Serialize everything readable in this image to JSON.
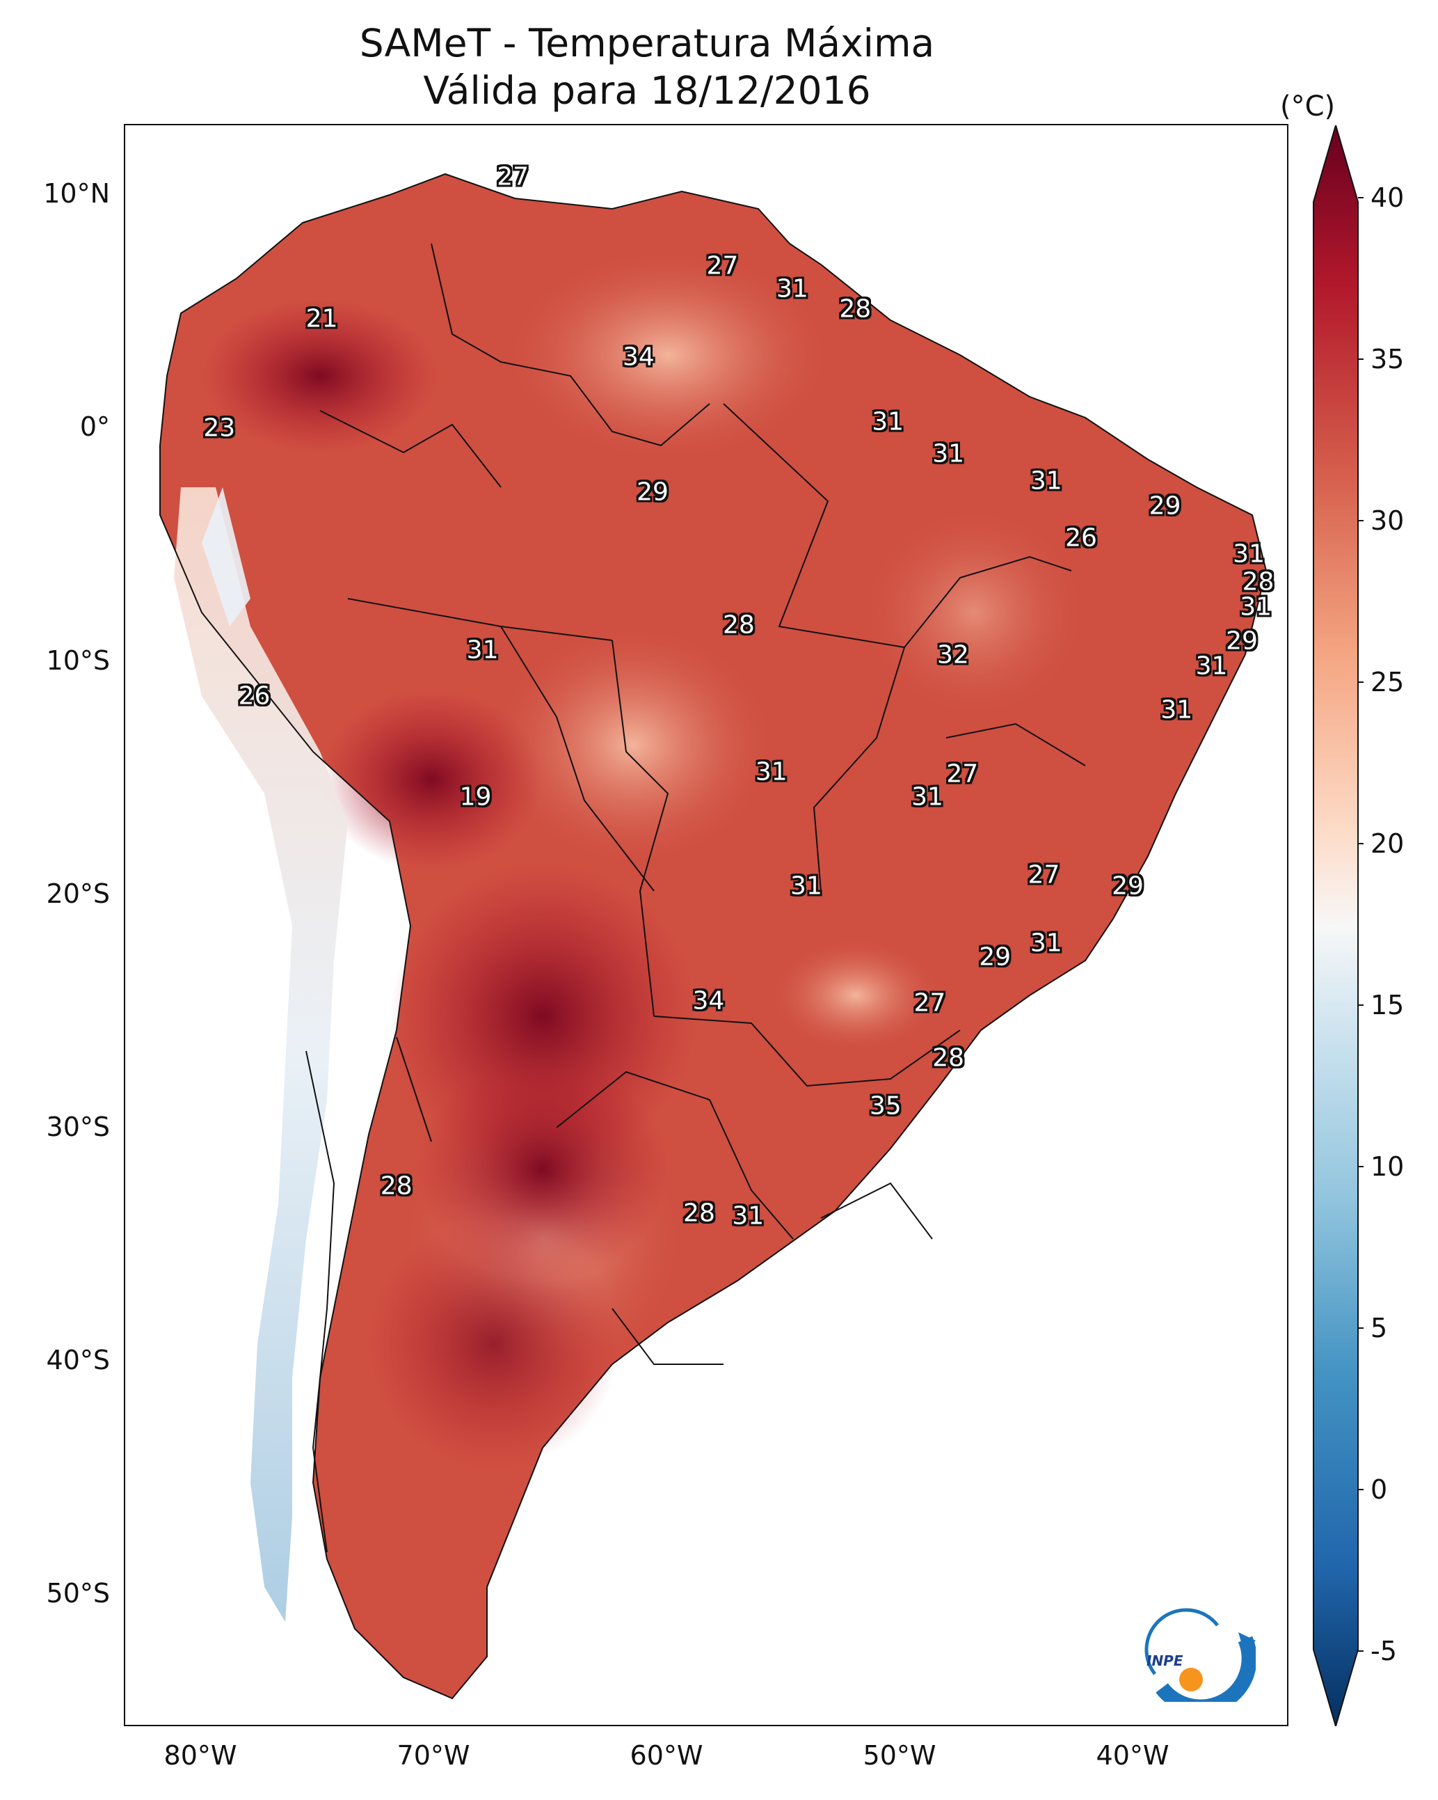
{
  "title": {
    "line1": "SAMeT - Temperatura Máxima",
    "line2": "Válida para 18/12/2016"
  },
  "map": {
    "lon_range": [
      -83,
      -33
    ],
    "lat_range": [
      -57,
      13
    ],
    "lat_ticks": [
      "10°N",
      "0°",
      "10°S",
      "20°S",
      "30°S",
      "40°S",
      "50°S"
    ],
    "lon_ticks": [
      "80°W",
      "70°W",
      "60°W",
      "50°W",
      "40°W"
    ]
  },
  "colorbar": {
    "unit": "(°C)",
    "ticks": [
      "40",
      "35",
      "30",
      "25",
      "20",
      "15",
      "10",
      "5",
      "0",
      "-5"
    ],
    "range": [
      -5,
      40
    ],
    "colors": [
      "#053061",
      "#2166ac",
      "#4393c3",
      "#92c5de",
      "#d1e5f0",
      "#f7f7f7",
      "#fddbc7",
      "#f4a582",
      "#d6604d",
      "#b2182b",
      "#67001f"
    ]
  },
  "labels": [
    {
      "text": "27",
      "lon": -66.3,
      "lat": 10.7
    },
    {
      "text": "27",
      "lon": -57.3,
      "lat": 6.8
    },
    {
      "text": "31",
      "lon": -54.3,
      "lat": 5.8
    },
    {
      "text": "28",
      "lon": -51.6,
      "lat": 4.9
    },
    {
      "text": "21",
      "lon": -74.5,
      "lat": 4.5
    },
    {
      "text": "34",
      "lon": -60.9,
      "lat": 2.8
    },
    {
      "text": "23",
      "lon": -78.9,
      "lat": -0.3
    },
    {
      "text": "31",
      "lon": -50.2,
      "lat": 0.0
    },
    {
      "text": "31",
      "lon": -47.6,
      "lat": -1.4
    },
    {
      "text": "31",
      "lon": -43.4,
      "lat": -2.6
    },
    {
      "text": "29",
      "lon": -60.3,
      "lat": -3.1
    },
    {
      "text": "29",
      "lon": -38.3,
      "lat": -3.7
    },
    {
      "text": "26",
      "lon": -41.9,
      "lat": -5.1
    },
    {
      "text": "31",
      "lon": -34.7,
      "lat": -5.8
    },
    {
      "text": "28",
      "lon": -34.3,
      "lat": -7.0
    },
    {
      "text": "31",
      "lon": -34.4,
      "lat": -8.1
    },
    {
      "text": "28",
      "lon": -56.6,
      "lat": -8.9
    },
    {
      "text": "31",
      "lon": -67.6,
      "lat": -10.0
    },
    {
      "text": "29",
      "lon": -35.0,
      "lat": -9.6
    },
    {
      "text": "32",
      "lon": -47.4,
      "lat": -10.2
    },
    {
      "text": "31",
      "lon": -36.3,
      "lat": -10.7
    },
    {
      "text": "26",
      "lon": -77.4,
      "lat": -12.0
    },
    {
      "text": "31",
      "lon": -37.8,
      "lat": -12.6
    },
    {
      "text": "31",
      "lon": -55.2,
      "lat": -15.3
    },
    {
      "text": "27",
      "lon": -47.0,
      "lat": -15.4
    },
    {
      "text": "31",
      "lon": -48.5,
      "lat": -16.4
    },
    {
      "text": "19",
      "lon": -67.9,
      "lat": -16.4
    },
    {
      "text": "27",
      "lon": -43.5,
      "lat": -19.8
    },
    {
      "text": "31",
      "lon": -53.7,
      "lat": -20.3
    },
    {
      "text": "29",
      "lon": -39.9,
      "lat": -20.3
    },
    {
      "text": "31",
      "lon": -43.4,
      "lat": -22.8
    },
    {
      "text": "29",
      "lon": -45.6,
      "lat": -23.4
    },
    {
      "text": "34",
      "lon": -57.9,
      "lat": -25.3
    },
    {
      "text": "27",
      "lon": -48.4,
      "lat": -25.4
    },
    {
      "text": "28",
      "lon": -47.6,
      "lat": -27.8
    },
    {
      "text": "35",
      "lon": -50.3,
      "lat": -29.9
    },
    {
      "text": "28",
      "lon": -71.3,
      "lat": -33.4
    },
    {
      "text": "28",
      "lon": -58.3,
      "lat": -34.6
    },
    {
      "text": "31",
      "lon": -56.2,
      "lat": -34.7
    }
  ],
  "logo": {
    "text": "INPE"
  }
}
